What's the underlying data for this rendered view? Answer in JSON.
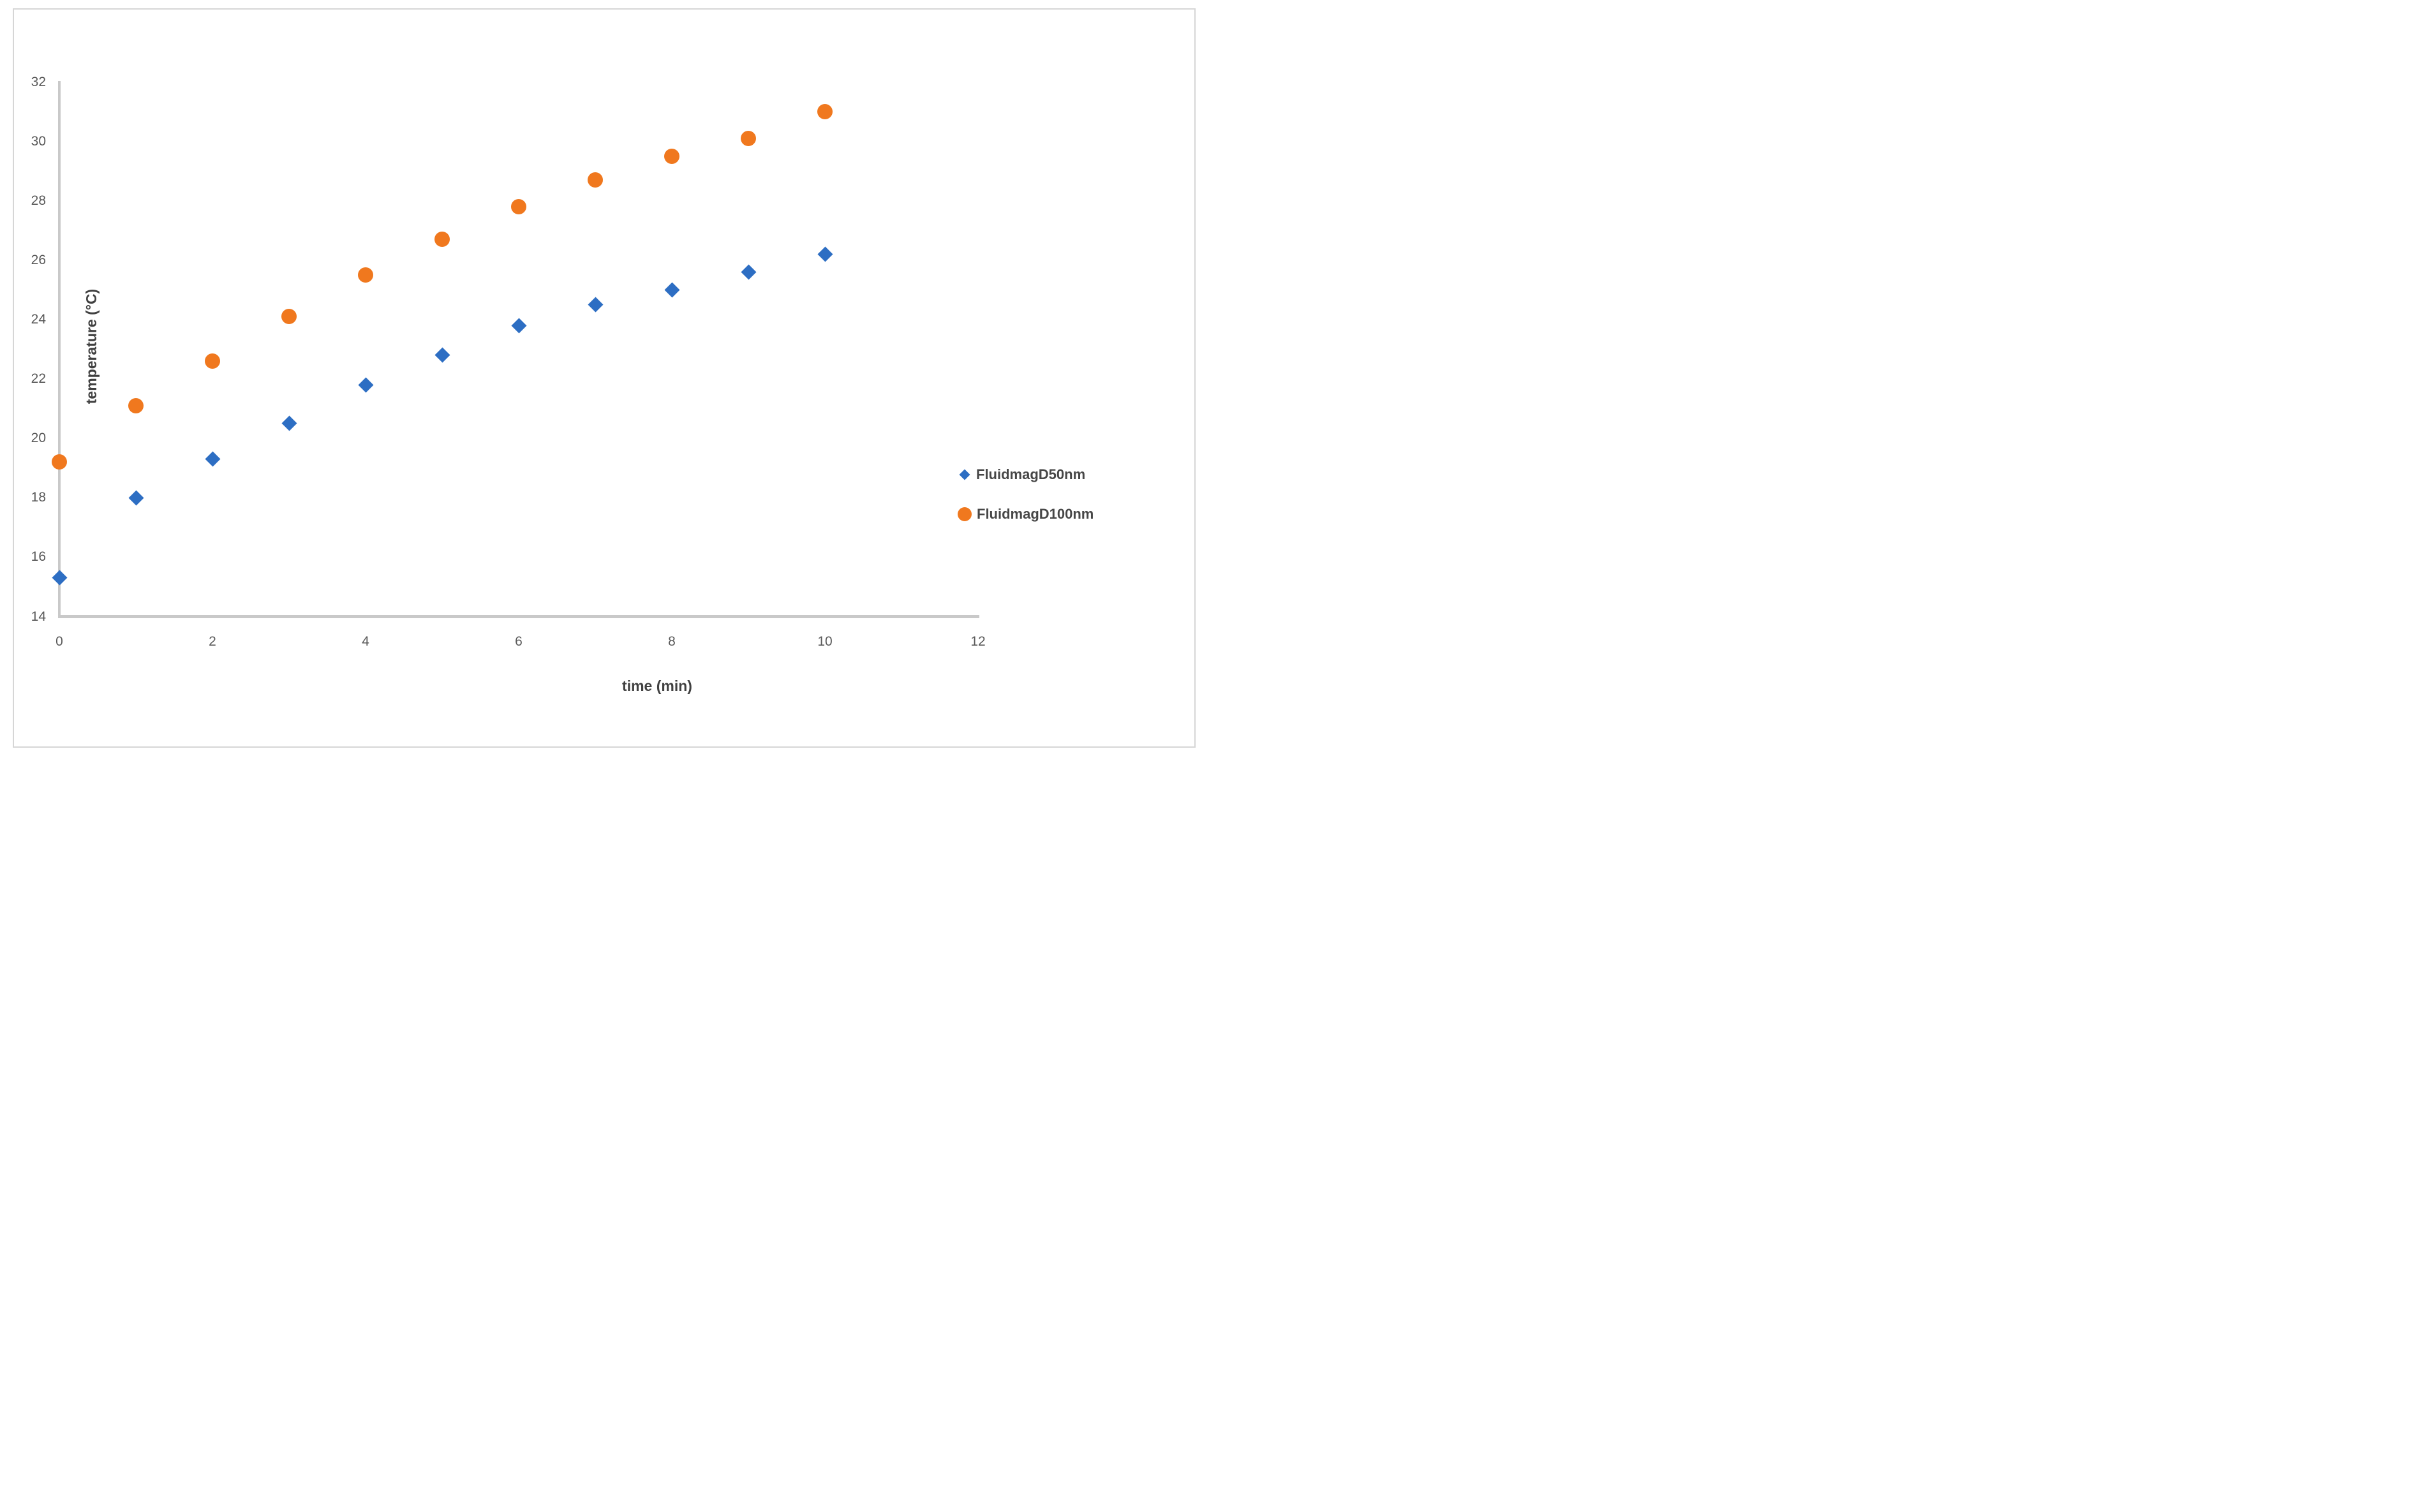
{
  "chart_data": {
    "type": "scatter",
    "title": "",
    "xlabel": "time (min)",
    "ylabel": "temperature (°C)",
    "x": [
      0,
      1,
      2,
      3,
      4,
      5,
      6,
      7,
      8,
      9,
      10
    ],
    "series": [
      {
        "name": "FluidmagD50nm",
        "marker": "diamond",
        "color": "#2d6ec3",
        "values": [
          15.3,
          18.0,
          19.3,
          20.5,
          21.8,
          22.8,
          23.8,
          24.5,
          25.0,
          25.6,
          26.2
        ]
      },
      {
        "name": "FluidmagD100nm",
        "marker": "circle",
        "color": "#f0781e",
        "values": [
          19.2,
          21.1,
          22.6,
          24.1,
          25.5,
          26.7,
          27.8,
          28.7,
          29.5,
          30.1,
          31.0
        ]
      }
    ],
    "x_axis": {
      "label": "time (min)",
      "min": 0,
      "max": 12,
      "ticks": [
        0,
        2,
        4,
        6,
        8,
        10,
        12
      ]
    },
    "y_axis": {
      "label": "temperature (°C)",
      "min": 14,
      "max": 32,
      "ticks": [
        14,
        16,
        18,
        20,
        22,
        24,
        26,
        28,
        30,
        32
      ]
    },
    "xlim": [
      0,
      12
    ],
    "ylim": [
      14,
      32
    ],
    "grid": false,
    "legend_position": "right-middle",
    "axis_line_color": "#c9c9c9",
    "tick_text_color": "#595959",
    "axis_title_color": "#404040",
    "legend_text_color": "#474747",
    "background_color": "#ffffff",
    "border_color": "#d6d6d6"
  }
}
